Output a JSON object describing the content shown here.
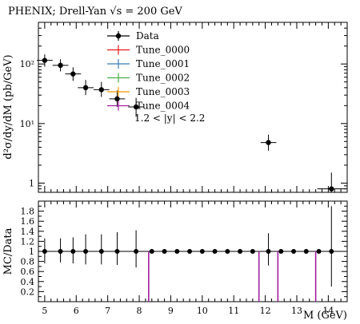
{
  "title": "PHENIX; Drell-Yan √s = 200 GeV",
  "colors": {
    "data": "#000000",
    "tune0000": "#e41a1c",
    "tune0001": "#377eb8",
    "tune0002": "#4daf4a",
    "tune0003": "#ff9900",
    "tune0004": "#a020a0"
  },
  "chart_data": [
    {
      "type": "scatter",
      "panel": "main",
      "ylabel": "d²σ/dy/dM (pb/GeV)",
      "yscale": "log",
      "xlim": [
        4.8,
        14.6
      ],
      "ylim": [
        0.7,
        500
      ],
      "ytick_labels": [
        "10²",
        "10¹",
        "1"
      ],
      "ytick_values": [
        100,
        10,
        1
      ],
      "annotation": "1.2 < |y| < 2.2",
      "legend": [
        "Data",
        "Tune_0000",
        "Tune_0001",
        "Tune_0002",
        "Tune_0003",
        "Tune_0004"
      ],
      "legend_position": "top-center",
      "series": [
        {
          "name": "Data",
          "points": [
            {
              "x": 5.0,
              "y": 115,
              "xerr": 0.25,
              "ylo": 90,
              "yhi": 145
            },
            {
              "x": 5.5,
              "y": 95,
              "xerr": 0.25,
              "ylo": 75,
              "yhi": 120
            },
            {
              "x": 5.9,
              "y": 68,
              "xerr": 0.25,
              "ylo": 52,
              "yhi": 88
            },
            {
              "x": 6.3,
              "y": 40,
              "xerr": 0.25,
              "ylo": 30,
              "yhi": 54
            },
            {
              "x": 6.8,
              "y": 37,
              "xerr": 0.25,
              "ylo": 28,
              "yhi": 50
            },
            {
              "x": 7.3,
              "y": 26,
              "xerr": 0.25,
              "ylo": 19,
              "yhi": 36
            },
            {
              "x": 7.9,
              "y": 19,
              "xerr": 0.25,
              "ylo": 13,
              "yhi": 27
            },
            {
              "x": 12.1,
              "y": 4.8,
              "xerr": 0.25,
              "ylo": 3.5,
              "yhi": 6.5
            },
            {
              "x": 14.1,
              "y": 0.8,
              "xerr": 0.45,
              "ylo": 0.55,
              "yhi": 1.5
            }
          ]
        }
      ]
    },
    {
      "type": "scatter",
      "panel": "ratio",
      "ylabel": "MC/Data",
      "xlabel": "M (GeV)",
      "xlim": [
        4.8,
        14.6
      ],
      "ylim": [
        0,
        2.0
      ],
      "xtick_values": [
        5,
        6,
        7,
        8,
        9,
        10,
        11,
        12,
        13,
        14
      ],
      "xtick_labels": [
        "5",
        "6",
        "7",
        "8",
        "9",
        "10",
        "11",
        "12",
        "13",
        "14"
      ],
      "ytick_values": [
        0.2,
        0.4,
        0.6,
        0.8,
        1.0,
        1.2,
        1.4,
        1.6,
        1.8
      ],
      "ytick_labels": [
        "0.2",
        "0.4",
        "0.6",
        "0.8",
        "1",
        "1.2",
        "1.4",
        "1.6",
        "1.8"
      ],
      "data_ratio": [
        {
          "x": 5.0,
          "lo": 0.76,
          "hi": 1.26
        },
        {
          "x": 5.5,
          "lo": 0.78,
          "hi": 1.26
        },
        {
          "x": 5.9,
          "lo": 0.76,
          "hi": 1.28
        },
        {
          "x": 6.3,
          "lo": 0.74,
          "hi": 1.34
        },
        {
          "x": 6.8,
          "lo": 0.74,
          "hi": 1.34
        },
        {
          "x": 7.3,
          "lo": 0.73,
          "hi": 1.38
        },
        {
          "x": 7.9,
          "lo": 0.68,
          "hi": 1.42
        },
        {
          "x": 12.1,
          "lo": 0.72,
          "hi": 1.36
        },
        {
          "x": 14.1,
          "lo": 0.3,
          "hi": 1.9
        }
      ],
      "points_x": [
        5.0,
        5.5,
        5.9,
        6.3,
        6.8,
        7.3,
        7.9,
        8.4,
        8.8,
        9.2,
        9.6,
        10.0,
        10.4,
        10.8,
        11.2,
        11.6,
        12.1,
        12.5,
        12.9,
        13.3,
        13.7,
        14.1
      ],
      "tune_spikes": [
        {
          "x": 8.3,
          "y": 1.0
        },
        {
          "x": 11.8,
          "y": 1.0
        },
        {
          "x": 12.4,
          "y": 1.0
        },
        {
          "x": 13.6,
          "y": 1.0
        }
      ]
    }
  ]
}
